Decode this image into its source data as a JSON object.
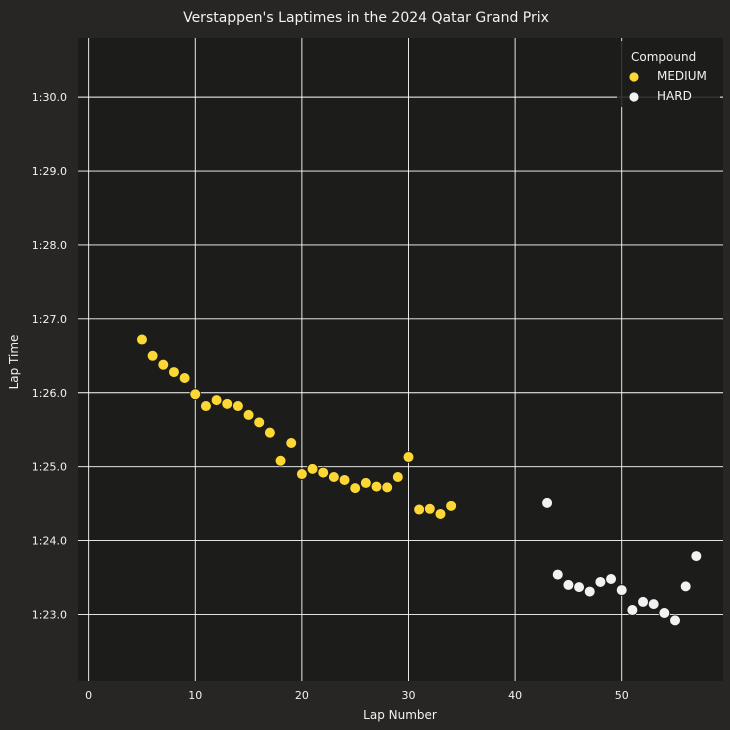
{
  "chart_data": {
    "type": "scatter",
    "title": "Verstappen's Laptimes in the 2024 Qatar Grand Prix",
    "xlabel": "Lap Number",
    "ylabel": "Lap Time",
    "xlim": [
      -1,
      59.5
    ],
    "ylim": [
      82.1,
      90.8
    ],
    "x_ticks": [
      0,
      10,
      20,
      30,
      40,
      50
    ],
    "y_ticks": [
      83,
      84,
      85,
      86,
      87,
      88,
      89,
      90
    ],
    "y_tick_labels": [
      "1:23.0",
      "1:24.0",
      "1:25.0",
      "1:26.0",
      "1:27.0",
      "1:28.0",
      "1:29.0",
      "1:30.0"
    ],
    "grid": true,
    "legend": {
      "title": "Compound",
      "placement": "top-right"
    },
    "series": [
      {
        "name": "MEDIUM",
        "color": "#fdd835",
        "x": [
          5,
          6,
          7,
          8,
          9,
          10,
          11,
          12,
          13,
          14,
          15,
          16,
          17,
          18,
          19,
          20,
          21,
          22,
          23,
          24,
          25,
          26,
          27,
          28,
          29,
          30,
          31,
          32,
          33,
          34
        ],
        "y": [
          86.72,
          86.5,
          86.38,
          86.28,
          86.2,
          85.98,
          85.82,
          85.9,
          85.85,
          85.82,
          85.7,
          85.6,
          85.46,
          85.08,
          85.32,
          84.9,
          84.97,
          84.92,
          84.86,
          84.82,
          84.71,
          84.78,
          84.73,
          84.72,
          84.86,
          85.13,
          84.42,
          84.43,
          84.36,
          84.47
        ]
      },
      {
        "name": "HARD",
        "color": "#f2f2f2",
        "x": [
          43,
          44,
          45,
          46,
          47,
          48,
          49,
          50,
          51,
          52,
          53,
          54,
          55,
          56,
          57
        ],
        "y": [
          84.51,
          83.54,
          83.4,
          83.37,
          83.31,
          83.44,
          83.48,
          83.33,
          83.06,
          83.17,
          83.14,
          83.02,
          82.92,
          83.38,
          83.79
        ]
      }
    ]
  }
}
